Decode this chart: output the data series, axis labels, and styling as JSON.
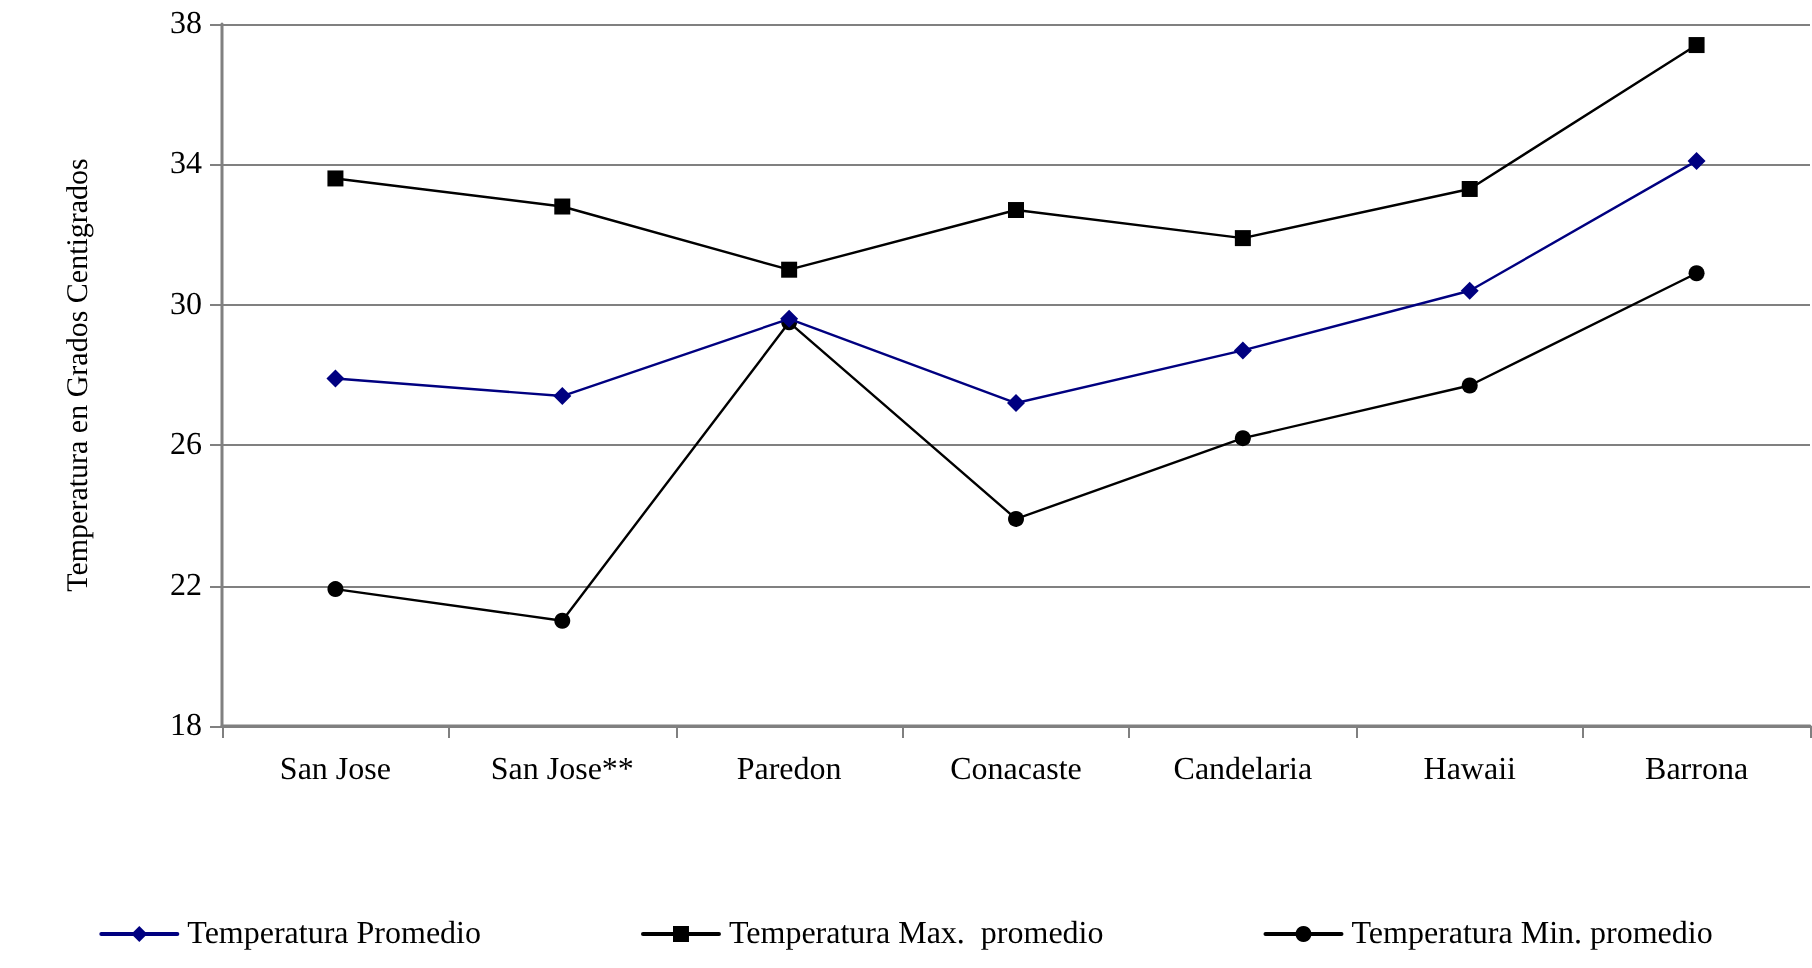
{
  "chart_data": {
    "type": "line",
    "ylabel": "Temperatura en Grados Centigrados",
    "categories": [
      "San Jose",
      "San Jose**",
      "Paredon",
      "Conacaste",
      "Candelaria",
      "Hawaii",
      "Barrona"
    ],
    "series": [
      {
        "name": "Temperatura Promedio",
        "color": "#000080",
        "marker": "diamond",
        "values": [
          27.9,
          27.4,
          29.6,
          27.2,
          28.7,
          30.4,
          34.1
        ]
      },
      {
        "name": "Temperatura Max.  promedio",
        "color": "#000000",
        "marker": "square",
        "values": [
          33.6,
          32.8,
          31.0,
          32.7,
          31.9,
          33.3,
          37.4
        ]
      },
      {
        "name": "Temperatura Min. promedio",
        "color": "#000000",
        "marker": "circle",
        "values": [
          21.9,
          21.0,
          29.5,
          23.9,
          26.2,
          27.7,
          30.9
        ]
      }
    ],
    "ylim": [
      18,
      38
    ],
    "yticks": [
      18,
      22,
      26,
      30,
      34,
      38
    ],
    "grid": "y",
    "legend": "bottom",
    "line_style": "solid"
  }
}
